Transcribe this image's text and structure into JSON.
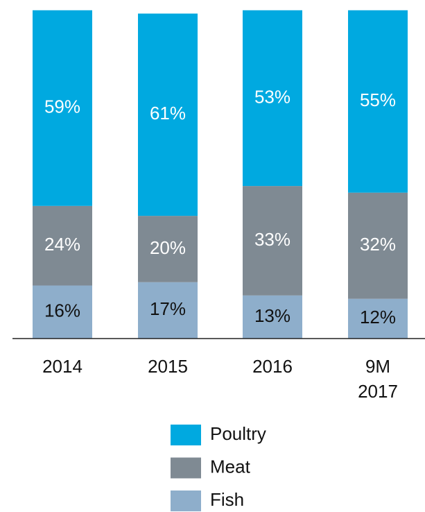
{
  "chart_data": {
    "type": "stacked_bar",
    "categories": [
      "2014",
      "2015",
      "2016",
      "9M 2017"
    ],
    "series": [
      {
        "name": "Fish",
        "color": "#8eaecb",
        "values": [
          16,
          17,
          13,
          12
        ],
        "value_labels": [
          "16%",
          "17%",
          "13%",
          "12%"
        ],
        "label_color": "#111111"
      },
      {
        "name": "Meat",
        "color": "#7f8a93",
        "values": [
          24,
          20,
          33,
          32
        ],
        "value_labels": [
          "24%",
          "20%",
          "33%",
          "32%"
        ],
        "label_color": "#ffffff"
      },
      {
        "name": "Poultry",
        "color": "#00a9e0",
        "values": [
          59,
          61,
          53,
          55
        ],
        "value_labels": [
          "59%",
          "61%",
          "53%",
          "55%"
        ],
        "label_color": "#ffffff"
      }
    ],
    "ylim": [
      0,
      100
    ],
    "legend": "bottom"
  }
}
